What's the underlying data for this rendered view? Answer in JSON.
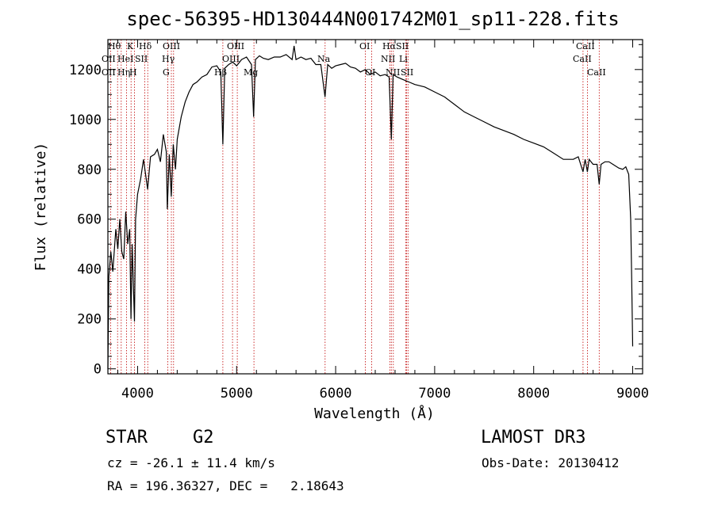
{
  "chart_data": {
    "type": "line",
    "title": "spec-56395-HD130444N001742M01_sp11-228.fits",
    "xlabel": "Wavelength (Å)",
    "ylabel": "Flux (relative)",
    "xlim": [
      3700,
      9100
    ],
    "ylim": [
      -20,
      1320
    ],
    "x_ticks": [
      4000,
      5000,
      6000,
      7000,
      8000,
      9000
    ],
    "y_ticks": [
      0,
      200,
      400,
      600,
      800,
      1000,
      1200
    ],
    "series": [
      {
        "name": "spectrum",
        "x": [
          3700,
          3710,
          3730,
          3750,
          3780,
          3800,
          3820,
          3840,
          3860,
          3880,
          3900,
          3920,
          3933,
          3945,
          3968,
          3980,
          4000,
          4030,
          4060,
          4101,
          4130,
          4170,
          4200,
          4230,
          4260,
          4290,
          4300,
          4320,
          4340,
          4360,
          4383,
          4400,
          4440,
          4480,
          4520,
          4560,
          4600,
          4650,
          4700,
          4750,
          4800,
          4840,
          4861,
          4880,
          4920,
          4960,
          5000,
          5050,
          5100,
          5150,
          5172,
          5190,
          5230,
          5270,
          5320,
          5380,
          5440,
          5500,
          5560,
          5580,
          5600,
          5650,
          5700,
          5750,
          5800,
          5850,
          5893,
          5920,
          5960,
          6000,
          6050,
          6100,
          6150,
          6200,
          6250,
          6300,
          6350,
          6400,
          6450,
          6500,
          6540,
          6563,
          6580,
          6620,
          6680,
          6740,
          6800,
          6900,
          7000,
          7100,
          7200,
          7300,
          7400,
          7500,
          7600,
          7700,
          7800,
          7900,
          8000,
          8100,
          8200,
          8300,
          8400,
          8450,
          8498,
          8520,
          8542,
          8560,
          8600,
          8640,
          8662,
          8680,
          8720,
          8760,
          8800,
          8860,
          8900,
          8930,
          8960,
          8980,
          8990,
          9000
        ],
        "values": [
          0,
          370,
          470,
          390,
          560,
          480,
          600,
          470,
          440,
          630,
          500,
          560,
          200,
          500,
          190,
          600,
          700,
          760,
          840,
          720,
          850,
          860,
          880,
          830,
          940,
          870,
          640,
          860,
          690,
          900,
          800,
          920,
          1010,
          1070,
          1110,
          1140,
          1150,
          1170,
          1180,
          1210,
          1215,
          1190,
          900,
          1205,
          1220,
          1230,
          1215,
          1240,
          1250,
          1220,
          1010,
          1240,
          1255,
          1245,
          1240,
          1250,
          1250,
          1260,
          1240,
          1295,
          1240,
          1250,
          1240,
          1245,
          1220,
          1220,
          1090,
          1220,
          1205,
          1215,
          1220,
          1225,
          1210,
          1205,
          1190,
          1200,
          1180,
          1190,
          1175,
          1180,
          1170,
          920,
          1180,
          1170,
          1160,
          1150,
          1140,
          1130,
          1110,
          1090,
          1060,
          1030,
          1010,
          990,
          970,
          955,
          940,
          920,
          905,
          890,
          865,
          840,
          840,
          850,
          790,
          840,
          790,
          840,
          820,
          820,
          740,
          820,
          830,
          830,
          820,
          805,
          800,
          810,
          780,
          600,
          350,
          90
        ]
      }
    ],
    "line_markers": [
      {
        "name": "OII",
        "wavelength": 3727
      },
      {
        "name": "Hθ",
        "wavelength": 3798
      },
      {
        "name": "Hη",
        "wavelength": 3835
      },
      {
        "name": "He I",
        "wavelength": 3889
      },
      {
        "name": "K",
        "wavelength": 3934
      },
      {
        "name": "H",
        "wavelength": 3969
      },
      {
        "name": "SII",
        "wavelength": 4072
      },
      {
        "name": "Hδ",
        "wavelength": 4102
      },
      {
        "name": "G",
        "wavelength": 4305
      },
      {
        "name": "Hγ",
        "wavelength": 4341
      },
      {
        "name": "OIII",
        "wavelength": 4363
      },
      {
        "name": "Hβ",
        "wavelength": 4861
      },
      {
        "name": "OIII",
        "wavelength": 4959
      },
      {
        "name": "OIII",
        "wavelength": 5007
      },
      {
        "name": "Mg",
        "wavelength": 5175
      },
      {
        "name": "Na",
        "wavelength": 5894
      },
      {
        "name": "OI",
        "wavelength": 6300
      },
      {
        "name": "OI",
        "wavelength": 6364
      },
      {
        "name": "NII",
        "wavelength": 6548
      },
      {
        "name": "Hα",
        "wavelength": 6563
      },
      {
        "name": "NII",
        "wavelength": 6583
      },
      {
        "name": "Li",
        "wavelength": 6707
      },
      {
        "name": "SII",
        "wavelength": 6716
      },
      {
        "name": "SII",
        "wavelength": 6731
      },
      {
        "name": "CaII",
        "wavelength": 8498
      },
      {
        "name": "CaII",
        "wavelength": 8542
      },
      {
        "name": "CaII",
        "wavelength": 8662
      }
    ],
    "line_labels": {
      "row1": [
        "Hθ",
        "K",
        "Hδ",
        "OIII",
        "OIII",
        "OI",
        "HαSII",
        "CaII"
      ],
      "row2": [
        "OII",
        "HeI",
        "SII",
        "Hγ",
        "OIII",
        "Na",
        "NII",
        "Li",
        "CaII"
      ],
      "row3": [
        "OII",
        "Hη",
        "H",
        "G",
        "Hβ",
        "Mg",
        "OI",
        "NII",
        "SII",
        "CaII"
      ]
    }
  },
  "info": {
    "object_class": "STAR",
    "subclass": "G2",
    "survey": "LAMOST DR3",
    "cz": "cz = -26.1 ± 11.4 km/s",
    "obs_date": "Obs-Date: 20130412",
    "coords": "RA = 196.36327, DEC =   2.18643"
  }
}
